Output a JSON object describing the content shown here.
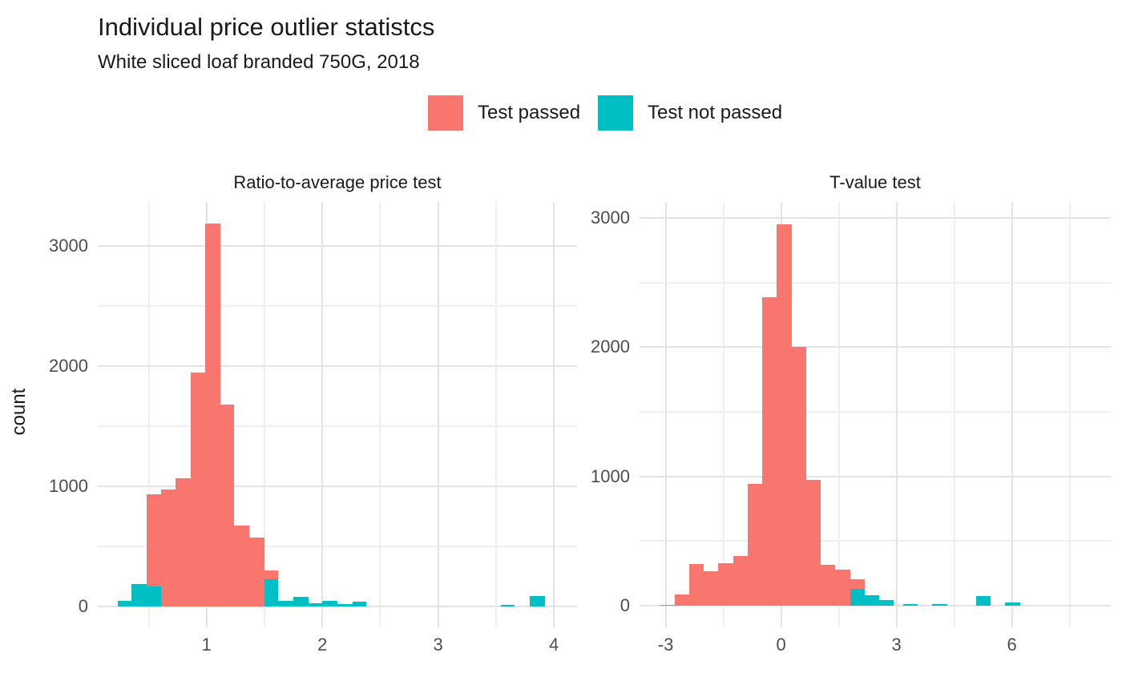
{
  "title": "Individual price outlier statistcs",
  "subtitle": "White sliced loaf branded 750G, 2018",
  "y_axis_title": "count",
  "legend": {
    "items": [
      {
        "id": "passed",
        "label": "Test passed",
        "color": "#F8766D"
      },
      {
        "id": "not_passed",
        "label": "Test not passed",
        "color": "#00BFC4"
      }
    ]
  },
  "colors": {
    "passed": "#F8766D",
    "not_passed": "#00BFC4",
    "grid_major": "#e3e3e3",
    "grid_minor": "#efefef",
    "tick_text": "#4d4d4d",
    "text": "#1a1a1a",
    "background": "#ffffff"
  },
  "chart_data": [
    {
      "type": "bar",
      "subtype": "stacked-histogram",
      "panel": "left",
      "title": "Ratio-to-average price test",
      "xlabel": "",
      "ylabel": "count",
      "x_ticks": [
        1,
        2,
        3,
        4
      ],
      "x_minor": [
        0.5,
        1.5,
        2.5,
        3.5
      ],
      "x_range": [
        0.06,
        4.2
      ],
      "y_ticks": [
        0,
        1000,
        2000,
        3000
      ],
      "y_minor": [
        500,
        1500,
        2500
      ],
      "y_range": [
        -173,
        3367
      ],
      "grid": true,
      "legend_position": "top",
      "bins": [
        {
          "x0": 0.23,
          "x1": 0.35,
          "not_passed": 45,
          "passed": 0
        },
        {
          "x0": 0.35,
          "x1": 0.48,
          "not_passed": 190,
          "passed": 0
        },
        {
          "x0": 0.48,
          "x1": 0.61,
          "not_passed": 167,
          "passed": 766
        },
        {
          "x0": 0.61,
          "x1": 0.73,
          "not_passed": 0,
          "passed": 975
        },
        {
          "x0": 0.73,
          "x1": 0.86,
          "not_passed": 0,
          "passed": 1070
        },
        {
          "x0": 0.86,
          "x1": 0.99,
          "not_passed": 0,
          "passed": 1945
        },
        {
          "x0": 0.99,
          "x1": 1.12,
          "not_passed": 0,
          "passed": 3190
        },
        {
          "x0": 1.12,
          "x1": 1.24,
          "not_passed": 0,
          "passed": 1680
        },
        {
          "x0": 1.24,
          "x1": 1.37,
          "not_passed": 0,
          "passed": 675
        },
        {
          "x0": 1.37,
          "x1": 1.5,
          "not_passed": 0,
          "passed": 575
        },
        {
          "x0": 1.5,
          "x1": 1.62,
          "not_passed": 225,
          "passed": 73
        },
        {
          "x0": 1.62,
          "x1": 1.75,
          "not_passed": 50,
          "passed": 0
        },
        {
          "x0": 1.75,
          "x1": 1.88,
          "not_passed": 80,
          "passed": 0
        },
        {
          "x0": 1.88,
          "x1": 2.0,
          "not_passed": 27,
          "passed": 0
        },
        {
          "x0": 2.0,
          "x1": 2.13,
          "not_passed": 45,
          "passed": 0
        },
        {
          "x0": 2.13,
          "x1": 2.26,
          "not_passed": 18,
          "passed": 0
        },
        {
          "x0": 2.26,
          "x1": 2.38,
          "not_passed": 40,
          "passed": 0
        },
        {
          "x0": 3.54,
          "x1": 3.66,
          "not_passed": 15,
          "passed": 0
        },
        {
          "x0": 3.79,
          "x1": 3.92,
          "not_passed": 88,
          "passed": 0
        }
      ]
    },
    {
      "type": "bar",
      "subtype": "stacked-histogram",
      "panel": "right",
      "title": "T-value test",
      "xlabel": "",
      "ylabel": "count",
      "x_ticks": [
        -3,
        0,
        3,
        6
      ],
      "x_minor": [
        -1.5,
        1.5,
        4.5,
        7.5
      ],
      "x_range": [
        -3.68,
        8.57
      ],
      "y_ticks": [
        0,
        1000,
        2000,
        3000
      ],
      "y_minor": [
        500,
        1500,
        2500
      ],
      "y_range": [
        -167,
        3123
      ],
      "grid": true,
      "legend_position": "top",
      "bins": [
        {
          "x0": -3.15,
          "x1": -2.77,
          "not_passed": 0,
          "passed": 8
        },
        {
          "x0": -2.77,
          "x1": -2.39,
          "not_passed": 0,
          "passed": 87
        },
        {
          "x0": -2.39,
          "x1": -2.01,
          "not_passed": 0,
          "passed": 320
        },
        {
          "x0": -2.01,
          "x1": -1.63,
          "not_passed": 0,
          "passed": 265
        },
        {
          "x0": -1.63,
          "x1": -1.25,
          "not_passed": 0,
          "passed": 330
        },
        {
          "x0": -1.25,
          "x1": -0.87,
          "not_passed": 0,
          "passed": 385
        },
        {
          "x0": -0.87,
          "x1": -0.49,
          "not_passed": 0,
          "passed": 940
        },
        {
          "x0": -0.49,
          "x1": -0.11,
          "not_passed": 0,
          "passed": 2385
        },
        {
          "x0": -0.11,
          "x1": 0.27,
          "not_passed": 0,
          "passed": 2950
        },
        {
          "x0": 0.27,
          "x1": 0.65,
          "not_passed": 0,
          "passed": 2000
        },
        {
          "x0": 0.65,
          "x1": 1.03,
          "not_passed": 0,
          "passed": 975
        },
        {
          "x0": 1.03,
          "x1": 1.41,
          "not_passed": 0,
          "passed": 316
        },
        {
          "x0": 1.41,
          "x1": 1.79,
          "not_passed": 0,
          "passed": 279
        },
        {
          "x0": 1.79,
          "x1": 2.17,
          "not_passed": 130,
          "passed": 72
        },
        {
          "x0": 2.17,
          "x1": 2.55,
          "not_passed": 78,
          "passed": 0
        },
        {
          "x0": 2.55,
          "x1": 2.93,
          "not_passed": 45,
          "passed": 0
        },
        {
          "x0": 3.17,
          "x1": 3.55,
          "not_passed": 12,
          "passed": 0
        },
        {
          "x0": 3.93,
          "x1": 4.31,
          "not_passed": 10,
          "passed": 0
        },
        {
          "x0": 5.07,
          "x1": 5.45,
          "not_passed": 72,
          "passed": 0
        },
        {
          "x0": 5.83,
          "x1": 6.21,
          "not_passed": 26,
          "passed": 0
        }
      ]
    }
  ]
}
